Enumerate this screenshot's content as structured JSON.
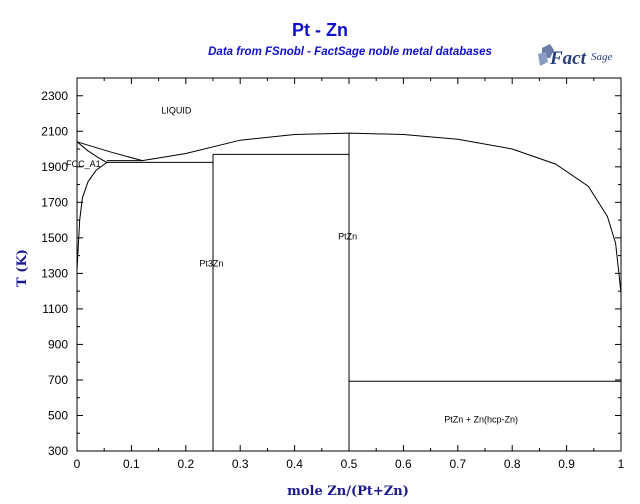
{
  "title": "Pt - Zn",
  "subtitle": "Data from FSnobl - FactSage noble metal databases",
  "logo": {
    "text": "FactSage",
    "mark": "TM"
  },
  "chart_data": {
    "type": "line",
    "title": "Pt - Zn",
    "xlabel": "mole Zn/(Pt+Zn)",
    "ylabel": "T (K)",
    "xlim": [
      0,
      1
    ],
    "ylim": [
      300,
      2400
    ],
    "xticks": [
      "0",
      "0.1",
      "0.2",
      "0.3",
      "0.4",
      "0.5",
      "0.6",
      "0.7",
      "0.8",
      "0.9",
      "1"
    ],
    "xtick_values": [
      0,
      0.1,
      0.2,
      0.3,
      0.4,
      0.5,
      0.6,
      0.7,
      0.8,
      0.9,
      1
    ],
    "yticks": [
      "300",
      "500",
      "700",
      "900",
      "1100",
      "1300",
      "1500",
      "1700",
      "1900",
      "2100",
      "2300"
    ],
    "ytick_values": [
      300,
      500,
      700,
      900,
      1100,
      1300,
      1500,
      1700,
      1900,
      2100,
      2300
    ],
    "grid": false,
    "labels": [
      {
        "text": "LIQUID",
        "x": 0.155,
        "y": 2200
      },
      {
        "text": "FCC_A1",
        "x": -0.02,
        "y": 1900
      },
      {
        "text": "Pt3Zn",
        "x": 0.225,
        "y": 1340
      },
      {
        "text": "PtZn",
        "x": 0.48,
        "y": 1490
      },
      {
        "text": "PtZn + Zn(hcp-Zn)",
        "x": 0.675,
        "y": 460
      }
    ],
    "series": [
      {
        "values": [
          [
            0,
            2041
          ],
          [
            0.06,
            1985
          ],
          [
            0.12,
            1935
          ]
        ]
      },
      {
        "values": [
          [
            0,
            2041
          ],
          [
            0.02,
            1990
          ],
          [
            0.04,
            1950
          ],
          [
            0.055,
            1925
          ]
        ]
      },
      {
        "values": [
          [
            0,
            1320
          ],
          [
            0.005,
            1600
          ],
          [
            0.01,
            1725
          ],
          [
            0.02,
            1815
          ],
          [
            0.035,
            1880
          ],
          [
            0.055,
            1925
          ]
        ]
      },
      {
        "values": [
          [
            0.12,
            1935
          ],
          [
            0.2,
            1975
          ],
          [
            0.3,
            2050
          ],
          [
            0.4,
            2082
          ],
          [
            0.5,
            2090
          ],
          [
            0.6,
            2082
          ],
          [
            0.7,
            2055
          ],
          [
            0.8,
            2000
          ],
          [
            0.88,
            1915
          ],
          [
            0.94,
            1790
          ],
          [
            0.975,
            1620
          ],
          [
            0.99,
            1470
          ],
          [
            1,
            1190
          ]
        ]
      },
      {
        "values": [
          [
            0.055,
            1925
          ],
          [
            0.25,
            1925
          ]
        ]
      },
      {
        "values": [
          [
            0.055,
            1935
          ],
          [
            0.12,
            1935
          ]
        ]
      },
      {
        "values": [
          [
            0.25,
            1970
          ],
          [
            0.5,
            1970
          ]
        ]
      },
      {
        "values": [
          [
            0.25,
            300
          ],
          [
            0.25,
            1970
          ]
        ]
      },
      {
        "values": [
          [
            0.5,
            300
          ],
          [
            0.5,
            2090
          ]
        ]
      },
      {
        "values": [
          [
            0.5,
            693
          ],
          [
            1,
            693
          ]
        ]
      }
    ]
  }
}
